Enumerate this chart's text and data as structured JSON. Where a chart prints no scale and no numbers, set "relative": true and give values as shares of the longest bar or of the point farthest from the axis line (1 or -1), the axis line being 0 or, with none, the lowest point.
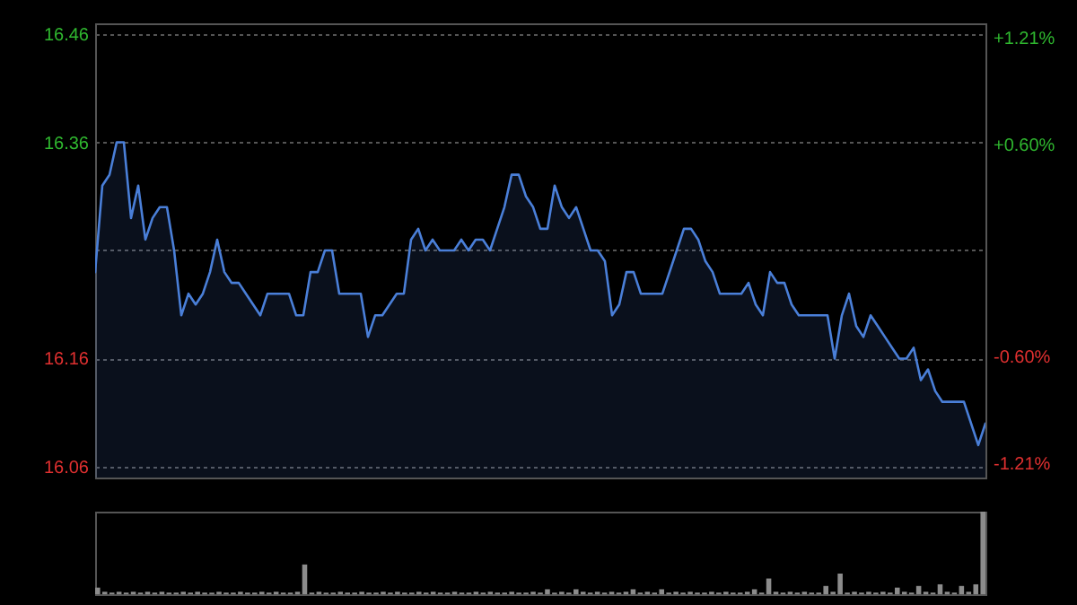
{
  "chart_data": [
    {
      "type": "area",
      "categories": [
        null,
        null,
        null,
        null,
        null,
        null,
        null,
        null,
        null,
        null,
        null,
        null,
        null,
        null,
        null,
        null,
        null,
        null,
        null,
        null,
        null,
        null,
        null,
        null,
        null,
        null,
        null,
        null,
        null,
        null,
        null,
        null,
        null,
        null,
        null,
        null,
        null,
        null,
        null,
        null,
        null,
        null,
        null,
        null,
        null,
        null,
        null,
        null,
        null,
        null,
        null,
        null,
        null,
        null,
        null,
        null,
        null,
        null,
        null,
        null,
        null,
        null,
        null,
        null,
        null,
        null,
        null,
        null,
        null,
        null,
        null,
        null,
        null,
        null,
        null,
        null,
        null,
        null,
        null,
        null,
        null,
        null,
        null,
        null,
        null,
        null,
        null,
        null,
        null,
        null,
        null,
        null,
        null,
        null,
        null,
        null,
        null,
        null,
        null,
        null,
        null,
        null,
        null,
        null,
        null,
        null,
        null,
        null,
        null,
        null,
        null,
        null,
        null,
        null,
        null,
        null,
        null,
        null,
        null,
        null,
        null,
        null,
        null,
        null,
        null
      ],
      "series": [
        {
          "color": "#4a7fd8",
          "values": [
            16.24,
            16.32,
            16.33,
            16.36,
            16.36,
            16.29,
            16.32,
            16.27,
            16.29,
            16.3,
            16.3,
            16.26,
            16.2,
            16.22,
            16.21,
            16.22,
            16.24,
            16.27,
            16.24,
            16.23,
            16.23,
            16.22,
            16.21,
            16.2,
            16.22,
            16.22,
            16.22,
            16.22,
            16.2,
            16.2,
            16.24,
            16.24,
            16.26,
            16.26,
            16.22,
            16.22,
            16.22,
            16.22,
            16.18,
            16.2,
            16.2,
            16.21,
            16.22,
            16.22,
            16.27,
            16.28,
            16.26,
            16.27,
            16.26,
            16.26,
            16.26,
            16.27,
            16.26,
            16.27,
            16.27,
            16.26,
            16.28,
            16.3,
            16.33,
            16.33,
            16.31,
            16.3,
            16.28,
            16.28,
            16.32,
            16.3,
            16.29,
            16.3,
            16.28,
            16.26,
            16.26,
            16.25,
            16.2,
            16.21,
            16.24,
            16.24,
            16.22,
            16.22,
            16.22,
            16.22,
            16.24,
            16.26,
            16.28,
            16.28,
            16.27,
            16.25,
            16.24,
            16.22,
            16.22,
            16.22,
            16.22,
            16.23,
            16.21,
            16.2,
            16.24,
            16.23,
            16.23,
            16.21,
            16.2,
            16.2,
            16.2,
            16.2,
            16.2,
            16.16,
            16.2,
            16.22,
            16.19,
            16.18,
            16.2,
            16.19,
            16.18,
            16.17,
            16.16,
            16.16,
            16.17,
            16.14,
            16.15,
            16.13,
            16.12,
            16.12,
            16.12,
            16.12,
            16.1,
            16.08,
            16.1
          ]
        }
      ],
      "ylim": [
        16.05,
        16.47
      ],
      "yticks": [
        16.06,
        16.16,
        {
          "value": 16.26,
          "label": null
        },
        16.36,
        16.46
      ],
      "y2lim": [
        -1.29,
        1.29
      ],
      "y2ticks": [
        {
          "value": -1.21,
          "label": "-1.21%"
        },
        {
          "value": -0.6,
          "label": "-0.60%"
        },
        {
          "value": 0.6,
          "label": "+0.60%"
        },
        {
          "value": 1.21,
          "label": "+1.21%"
        }
      ],
      "grid": "y"
    },
    {
      "type": "bar",
      "relative": true,
      "categories": [
        null,
        null,
        null,
        null,
        null,
        null,
        null,
        null,
        null,
        null,
        null,
        null,
        null,
        null,
        null,
        null,
        null,
        null,
        null,
        null,
        null,
        null,
        null,
        null,
        null,
        null,
        null,
        null,
        null,
        null,
        null,
        null,
        null,
        null,
        null,
        null,
        null,
        null,
        null,
        null,
        null,
        null,
        null,
        null,
        null,
        null,
        null,
        null,
        null,
        null,
        null,
        null,
        null,
        null,
        null,
        null,
        null,
        null,
        null,
        null,
        null,
        null,
        null,
        null,
        null,
        null,
        null,
        null,
        null,
        null,
        null,
        null,
        null,
        null,
        null,
        null,
        null,
        null,
        null,
        null,
        null,
        null,
        null,
        null,
        null,
        null,
        null,
        null,
        null,
        null,
        null,
        null,
        null,
        null,
        null,
        null,
        null,
        null,
        null,
        null,
        null,
        null,
        null,
        null,
        null,
        null,
        null,
        null,
        null,
        null,
        null,
        null,
        null,
        null,
        null,
        null,
        null,
        null,
        null,
        null,
        null,
        null,
        null,
        null,
        null
      ],
      "series": [
        {
          "color": "#8c8c8c",
          "values": [
            0.08,
            0.03,
            0.02,
            0.03,
            0.02,
            0.03,
            0.02,
            0.03,
            0.02,
            0.03,
            0.02,
            0.02,
            0.03,
            0.02,
            0.03,
            0.02,
            0.02,
            0.03,
            0.02,
            0.02,
            0.03,
            0.02,
            0.02,
            0.03,
            0.02,
            0.03,
            0.02,
            0.02,
            0.03,
            0.36,
            0.02,
            0.03,
            0.02,
            0.02,
            0.03,
            0.02,
            0.02,
            0.03,
            0.02,
            0.02,
            0.03,
            0.02,
            0.03,
            0.02,
            0.02,
            0.03,
            0.02,
            0.03,
            0.02,
            0.02,
            0.03,
            0.02,
            0.02,
            0.03,
            0.02,
            0.03,
            0.02,
            0.02,
            0.03,
            0.02,
            0.02,
            0.03,
            0.02,
            0.06,
            0.02,
            0.03,
            0.02,
            0.06,
            0.03,
            0.02,
            0.03,
            0.02,
            0.03,
            0.02,
            0.03,
            0.06,
            0.02,
            0.03,
            0.02,
            0.06,
            0.02,
            0.03,
            0.02,
            0.03,
            0.02,
            0.02,
            0.03,
            0.02,
            0.03,
            0.02,
            0.02,
            0.03,
            0.06,
            0.02,
            0.19,
            0.03,
            0.02,
            0.03,
            0.02,
            0.03,
            0.02,
            0.02,
            0.1,
            0.03,
            0.25,
            0.02,
            0.03,
            0.02,
            0.03,
            0.02,
            0.03,
            0.02,
            0.08,
            0.03,
            0.02,
            0.1,
            0.03,
            0.02,
            0.12,
            0.03,
            0.02,
            0.1,
            0.03,
            0.12,
            1
          ]
        }
      ]
    }
  ]
}
